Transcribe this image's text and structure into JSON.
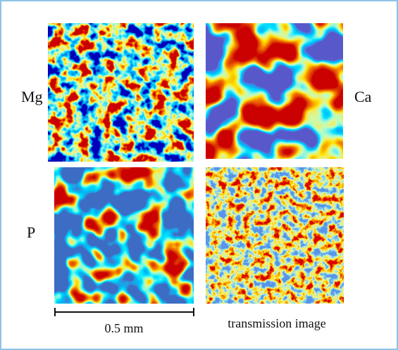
{
  "panels": [
    {
      "label": "Mg"
    },
    {
      "label": "Ca"
    },
    {
      "label": "P"
    },
    {
      "label": "transmission image"
    }
  ],
  "scale_bar": "0.5 mm"
}
